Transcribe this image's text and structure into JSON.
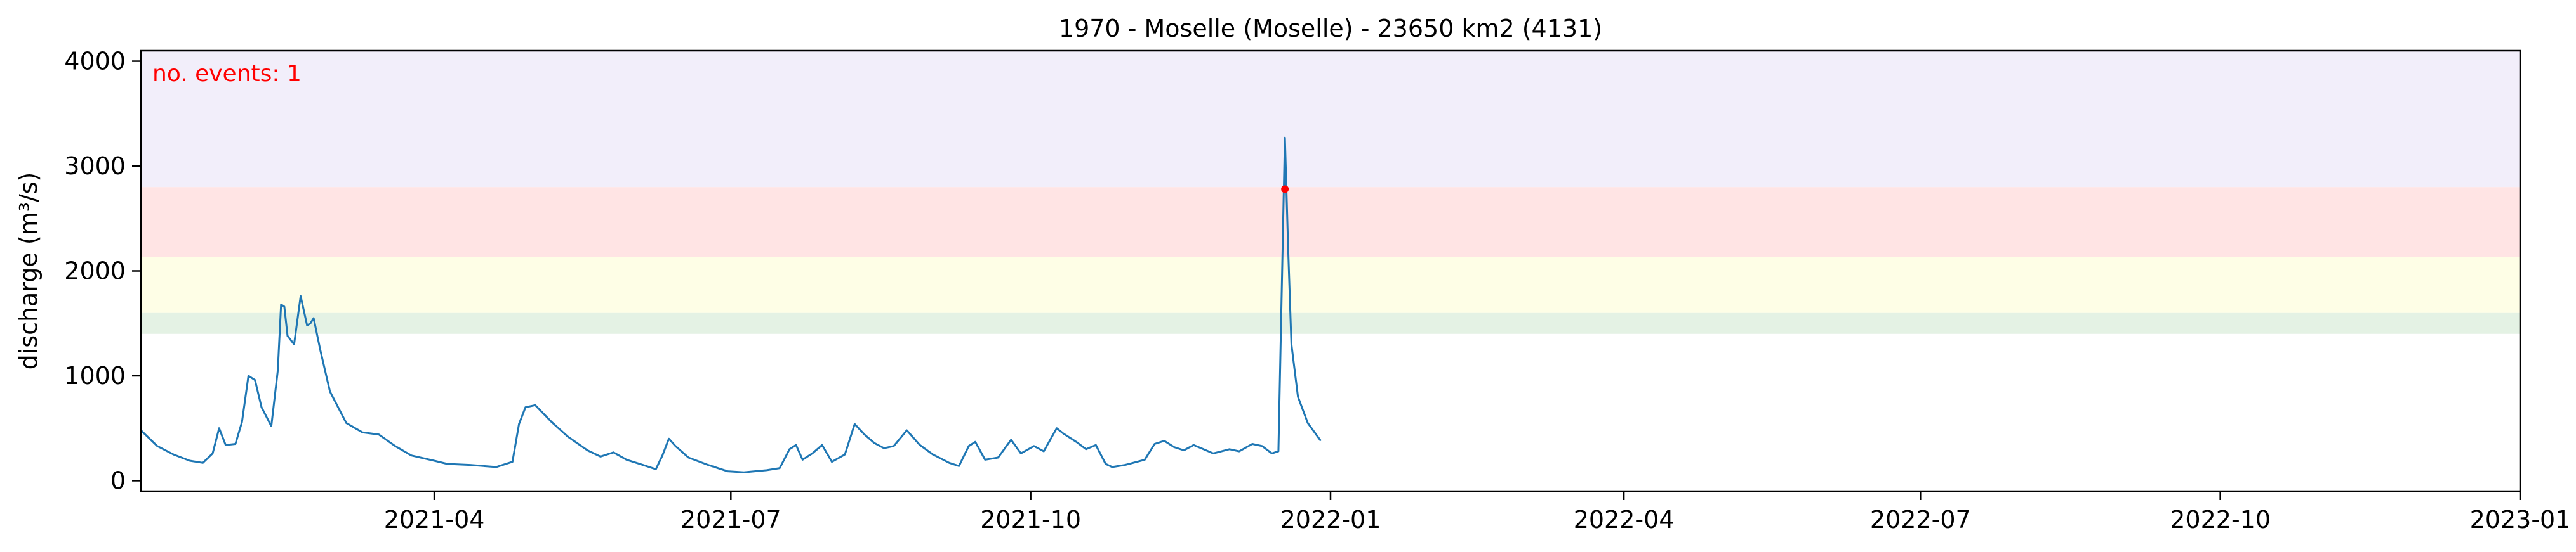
{
  "chart_data": {
    "type": "line",
    "title": "1970 - Moselle (Moselle) - 23650 km2 (4131)",
    "ylabel": "discharge (m³/s)",
    "xlabel": "",
    "ylim": [
      -100,
      4100
    ],
    "xlim": [
      "2021-01-01",
      "2023-01-01"
    ],
    "yticks": [
      0,
      1000,
      2000,
      3000,
      4000
    ],
    "xticks": [
      "2021-04",
      "2021-07",
      "2021-10",
      "2022-01",
      "2022-04",
      "2022-07",
      "2022-10",
      "2023-01"
    ],
    "grid": false,
    "annotation": {
      "text": "no. events: 1",
      "color": "#ff0000"
    },
    "threshold_bands": [
      {
        "from": 1400,
        "to": 1600,
        "color": "#e4f2e4"
      },
      {
        "from": 1600,
        "to": 2130,
        "color": "#fefee6"
      },
      {
        "from": 2130,
        "to": 2800,
        "color": "#ffe4e4"
      },
      {
        "from": 2800,
        "to": 4100,
        "color": "#f2eefa"
      }
    ],
    "series": [
      {
        "color": "#1f77b4",
        "points": [
          [
            "2021-01-01",
            480
          ],
          [
            "2021-01-06",
            330
          ],
          [
            "2021-01-11",
            250
          ],
          [
            "2021-01-16",
            190
          ],
          [
            "2021-01-20",
            170
          ],
          [
            "2021-01-23",
            260
          ],
          [
            "2021-01-25",
            500
          ],
          [
            "2021-01-27",
            340
          ],
          [
            "2021-01-30",
            350
          ],
          [
            "2021-02-01",
            560
          ],
          [
            "2021-02-03",
            1000
          ],
          [
            "2021-02-05",
            960
          ],
          [
            "2021-02-07",
            700
          ],
          [
            "2021-02-10",
            520
          ],
          [
            "2021-02-12",
            1050
          ],
          [
            "2021-02-13",
            1680
          ],
          [
            "2021-02-14",
            1660
          ],
          [
            "2021-02-15",
            1380
          ],
          [
            "2021-02-17",
            1300
          ],
          [
            "2021-02-19",
            1760
          ],
          [
            "2021-02-21",
            1480
          ],
          [
            "2021-02-22",
            1500
          ],
          [
            "2021-02-23",
            1550
          ],
          [
            "2021-02-25",
            1250
          ],
          [
            "2021-02-28",
            850
          ],
          [
            "2021-03-05",
            550
          ],
          [
            "2021-03-10",
            460
          ],
          [
            "2021-03-15",
            440
          ],
          [
            "2021-03-20",
            330
          ],
          [
            "2021-03-25",
            240
          ],
          [
            "2021-04-01",
            190
          ],
          [
            "2021-04-05",
            160
          ],
          [
            "2021-04-12",
            150
          ],
          [
            "2021-04-20",
            130
          ],
          [
            "2021-04-25",
            180
          ],
          [
            "2021-04-27",
            540
          ],
          [
            "2021-04-29",
            700
          ],
          [
            "2021-05-02",
            720
          ],
          [
            "2021-05-07",
            560
          ],
          [
            "2021-05-12",
            420
          ],
          [
            "2021-05-18",
            290
          ],
          [
            "2021-05-22",
            230
          ],
          [
            "2021-05-26",
            270
          ],
          [
            "2021-05-30",
            200
          ],
          [
            "2021-06-04",
            150
          ],
          [
            "2021-06-08",
            110
          ],
          [
            "2021-06-10",
            240
          ],
          [
            "2021-06-12",
            400
          ],
          [
            "2021-06-14",
            330
          ],
          [
            "2021-06-18",
            220
          ],
          [
            "2021-06-24",
            150
          ],
          [
            "2021-06-30",
            90
          ],
          [
            "2021-07-05",
            80
          ],
          [
            "2021-07-12",
            100
          ],
          [
            "2021-07-16",
            120
          ],
          [
            "2021-07-19",
            300
          ],
          [
            "2021-07-21",
            340
          ],
          [
            "2021-07-23",
            200
          ],
          [
            "2021-07-26",
            260
          ],
          [
            "2021-07-29",
            340
          ],
          [
            "2021-08-01",
            180
          ],
          [
            "2021-08-05",
            250
          ],
          [
            "2021-08-08",
            540
          ],
          [
            "2021-08-11",
            440
          ],
          [
            "2021-08-14",
            360
          ],
          [
            "2021-08-17",
            310
          ],
          [
            "2021-08-20",
            330
          ],
          [
            "2021-08-24",
            480
          ],
          [
            "2021-08-28",
            340
          ],
          [
            "2021-09-01",
            250
          ],
          [
            "2021-09-06",
            170
          ],
          [
            "2021-09-09",
            140
          ],
          [
            "2021-09-12",
            330
          ],
          [
            "2021-09-14",
            370
          ],
          [
            "2021-09-17",
            200
          ],
          [
            "2021-09-21",
            220
          ],
          [
            "2021-09-25",
            390
          ],
          [
            "2021-09-28",
            260
          ],
          [
            "2021-10-02",
            330
          ],
          [
            "2021-10-05",
            280
          ],
          [
            "2021-10-09",
            500
          ],
          [
            "2021-10-11",
            450
          ],
          [
            "2021-10-15",
            370
          ],
          [
            "2021-10-18",
            300
          ],
          [
            "2021-10-21",
            340
          ],
          [
            "2021-10-24",
            160
          ],
          [
            "2021-10-26",
            130
          ],
          [
            "2021-10-30",
            150
          ],
          [
            "2021-11-05",
            200
          ],
          [
            "2021-11-08",
            350
          ],
          [
            "2021-11-11",
            380
          ],
          [
            "2021-11-14",
            320
          ],
          [
            "2021-11-17",
            290
          ],
          [
            "2021-11-20",
            340
          ],
          [
            "2021-11-23",
            300
          ],
          [
            "2021-11-26",
            260
          ],
          [
            "2021-12-01",
            300
          ],
          [
            "2021-12-04",
            280
          ],
          [
            "2021-12-08",
            350
          ],
          [
            "2021-12-11",
            330
          ],
          [
            "2021-12-14",
            260
          ],
          [
            "2021-12-16",
            280
          ],
          [
            "2021-12-18",
            3270
          ],
          [
            "2021-12-19",
            2200
          ],
          [
            "2021-12-20",
            1300
          ],
          [
            "2021-12-22",
            800
          ],
          [
            "2021-12-25",
            550
          ],
          [
            "2021-12-29",
            380
          ]
        ]
      }
    ],
    "events": [
      {
        "x": "2021-12-18",
        "y": 2780
      }
    ]
  }
}
